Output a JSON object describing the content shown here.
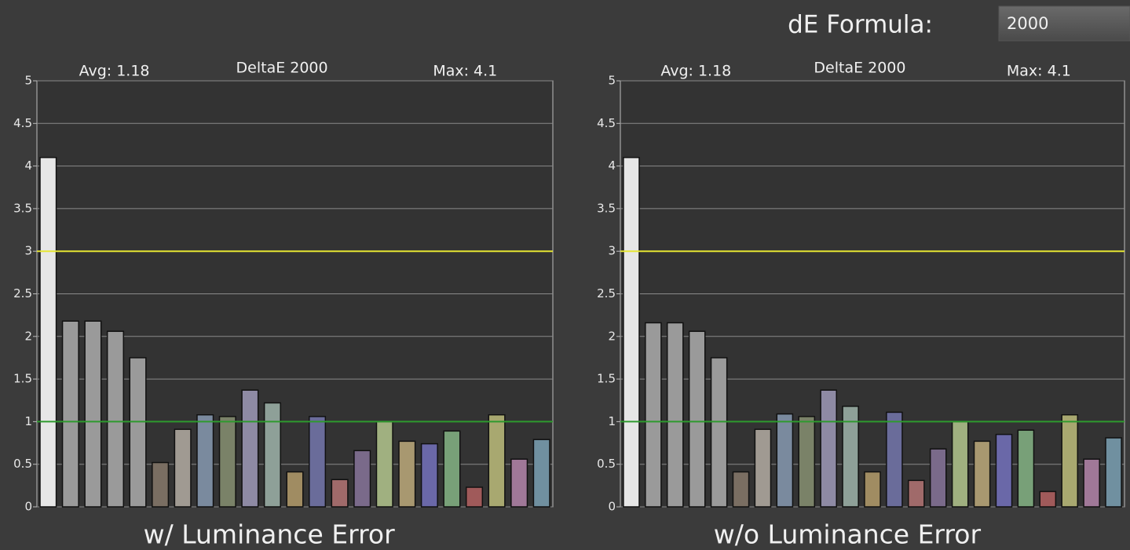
{
  "controls": {
    "label": "dE Formula:",
    "value": "2000"
  },
  "chart_data": [
    {
      "type": "bar",
      "title": "DeltaE 2000",
      "annotations": [
        "Avg: 1.18",
        "Max: 4.1"
      ],
      "caption": "w/ Luminance Error",
      "values": [
        4.1,
        2.18,
        2.18,
        2.06,
        1.75,
        0.52,
        0.91,
        1.08,
        1.06,
        1.37,
        1.22,
        0.41,
        1.06,
        0.32,
        0.66,
        1.0,
        0.77,
        0.74,
        0.89,
        0.23,
        1.08,
        0.56,
        0.79
      ],
      "colors": [
        "#e6e6e6",
        "#9a9a9a",
        "#9a9a9a",
        "#9a9a9a",
        "#9a9a9a",
        "#7a6e62",
        "#a09a92",
        "#7a8a9e",
        "#7a8268",
        "#8e8aa4",
        "#8ea098",
        "#a08c62",
        "#6a6c9a",
        "#a06a6a",
        "#7a6a8a",
        "#a0b080",
        "#a89870",
        "#6a68a8",
        "#78a078",
        "#a05a5a",
        "#a8a870",
        "#a07898",
        "#7090a0"
      ],
      "ylim": [
        0,
        5
      ],
      "yticks": [
        0,
        0.5,
        1,
        1.5,
        2,
        2.5,
        3,
        3.5,
        4,
        4.5,
        5
      ],
      "grid": true,
      "reference_lines": [
        {
          "value": 3,
          "color": "#e6e633"
        },
        {
          "value": 1,
          "color": "#2e9a2e"
        }
      ]
    },
    {
      "type": "bar",
      "title": "DeltaE 2000",
      "annotations": [
        "Avg: 1.18",
        "Max: 4.1"
      ],
      "caption": "w/o Luminance Error",
      "values": [
        4.1,
        2.16,
        2.16,
        2.06,
        1.75,
        0.41,
        0.91,
        1.09,
        1.06,
        1.37,
        1.18,
        0.41,
        1.11,
        0.31,
        0.68,
        1.0,
        0.77,
        0.85,
        0.9,
        0.18,
        1.08,
        0.56,
        0.81
      ],
      "colors": [
        "#e6e6e6",
        "#9a9a9a",
        "#9a9a9a",
        "#9a9a9a",
        "#9a9a9a",
        "#7a6e62",
        "#a09a92",
        "#7a8a9e",
        "#7a8268",
        "#8e8aa4",
        "#8ea098",
        "#a08c62",
        "#6a6c9a",
        "#a06a6a",
        "#7a6a8a",
        "#a0b080",
        "#a89870",
        "#6a68a8",
        "#78a078",
        "#a05a5a",
        "#a8a870",
        "#a07898",
        "#7090a0"
      ],
      "ylim": [
        0,
        5
      ],
      "yticks": [
        0,
        0.5,
        1,
        1.5,
        2,
        2.5,
        3,
        3.5,
        4,
        4.5,
        5
      ],
      "grid": true,
      "reference_lines": [
        {
          "value": 3,
          "color": "#e6e633"
        },
        {
          "value": 1,
          "color": "#2e9a2e"
        }
      ]
    }
  ]
}
